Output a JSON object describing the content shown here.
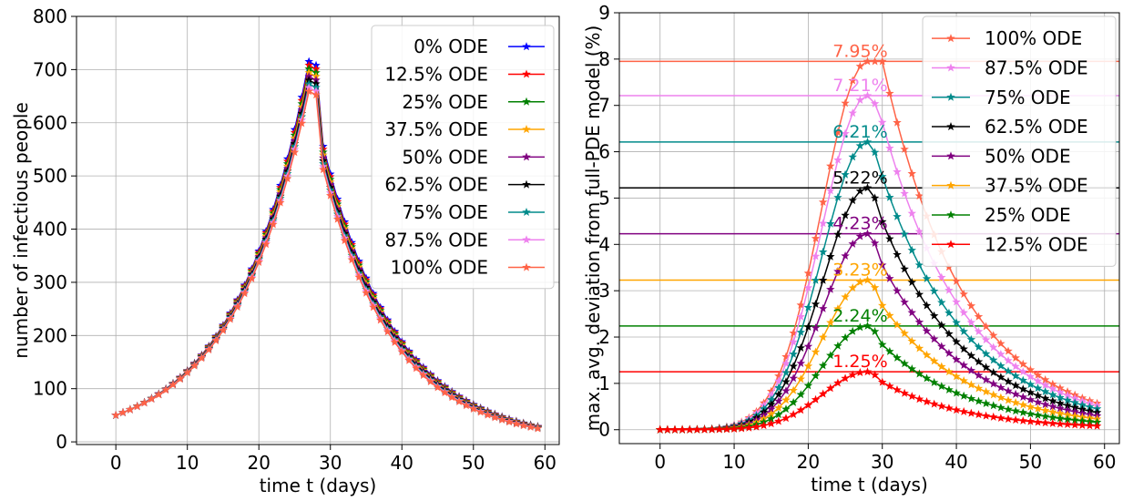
{
  "chart_data": [
    {
      "type": "line",
      "xlabel": "time t (days)",
      "ylabel": "number of infectious people",
      "xlim": [
        -5.5,
        62
      ],
      "ylim": [
        -5,
        800
      ],
      "xticks": [
        0,
        10,
        20,
        30,
        40,
        50,
        60
      ],
      "yticks": [
        0,
        100,
        200,
        300,
        400,
        500,
        600,
        700,
        800
      ],
      "grid": true,
      "legend_position": "top-right",
      "marker": "star",
      "x": {
        "start": 0,
        "end": 59,
        "step": 1
      },
      "series": [
        {
          "name": "0% ODE",
          "color": "#0000ff",
          "peak": 715,
          "end_value": 29
        },
        {
          "name": "12.5% ODE",
          "color": "#ff0000",
          "peak": 708,
          "end_value": 28.5
        },
        {
          "name": "25% ODE",
          "color": "#008000",
          "peak": 701,
          "end_value": 28
        },
        {
          "name": "37.5% ODE",
          "color": "#ffa500",
          "peak": 694,
          "end_value": 27.5
        },
        {
          "name": "50% ODE",
          "color": "#800080",
          "peak": 687,
          "end_value": 27
        },
        {
          "name": "62.5% ODE",
          "color": "#000000",
          "peak": 680,
          "end_value": 26.5
        },
        {
          "name": "75% ODE",
          "color": "#008b8b",
          "peak": 673,
          "end_value": 26
        },
        {
          "name": "87.5% ODE",
          "color": "#ee82ee",
          "peak": 666,
          "end_value": 25.5
        },
        {
          "name": "100% ODE",
          "color": "#ff6347",
          "peak": 659,
          "end_value": 25
        }
      ],
      "shared_profile": {
        "start_value": 50,
        "growth_end_day": 27,
        "peak_plateau_day": 28,
        "drop_day": 29,
        "drop_value_ratio": 0.777
      }
    },
    {
      "type": "line",
      "xlabel": "time t (days)",
      "ylabel": "max. avg. deviation from full-PDE model (%)",
      "xlim": [
        -5.5,
        62
      ],
      "ylim": [
        -0.3,
        9
      ],
      "xticks": [
        0,
        10,
        20,
        30,
        40,
        50,
        60
      ],
      "yticks": [
        0,
        1,
        2,
        3,
        4,
        5,
        6,
        7,
        8,
        9
      ],
      "grid": true,
      "legend_position": "top-right",
      "marker": "star",
      "series": [
        {
          "name": "100% ODE",
          "color": "#ff6347",
          "peak": 7.95,
          "peak_label": "7.95%",
          "end_value": 0.57,
          "drop_ratio": 0.0
        },
        {
          "name": "87.5% ODE",
          "color": "#ee82ee",
          "peak": 7.21,
          "peak_label": "7.21%",
          "end_value": 0.52,
          "drop_ratio": 0.08
        },
        {
          "name": "75% ODE",
          "color": "#008b8b",
          "peak": 6.21,
          "peak_label": "6.21%",
          "end_value": 0.45,
          "drop_ratio": 0.12
        },
        {
          "name": "62.5% ODE",
          "color": "#000000",
          "peak": 5.22,
          "peak_label": "5.22%",
          "end_value": 0.37,
          "drop_ratio": 0.14
        },
        {
          "name": "50% ODE",
          "color": "#800080",
          "peak": 4.23,
          "peak_label": "4.23%",
          "end_value": 0.3,
          "drop_ratio": 0.16
        },
        {
          "name": "37.5% ODE",
          "color": "#ffa500",
          "peak": 3.23,
          "peak_label": "3.23%",
          "end_value": 0.23,
          "drop_ratio": 0.17
        },
        {
          "name": "25% ODE",
          "color": "#008000",
          "peak": 2.24,
          "peak_label": "2.24%",
          "end_value": 0.16,
          "drop_ratio": 0.18
        },
        {
          "name": "12.5% ODE",
          "color": "#ff0000",
          "peak": 1.25,
          "peak_label": "1.25%",
          "end_value": 0.08,
          "drop_ratio": 0.18
        }
      ],
      "shared_profile": {
        "peak_day": 28,
        "growth_scale": 5.8,
        "growth_end_day": 29
      }
    }
  ]
}
